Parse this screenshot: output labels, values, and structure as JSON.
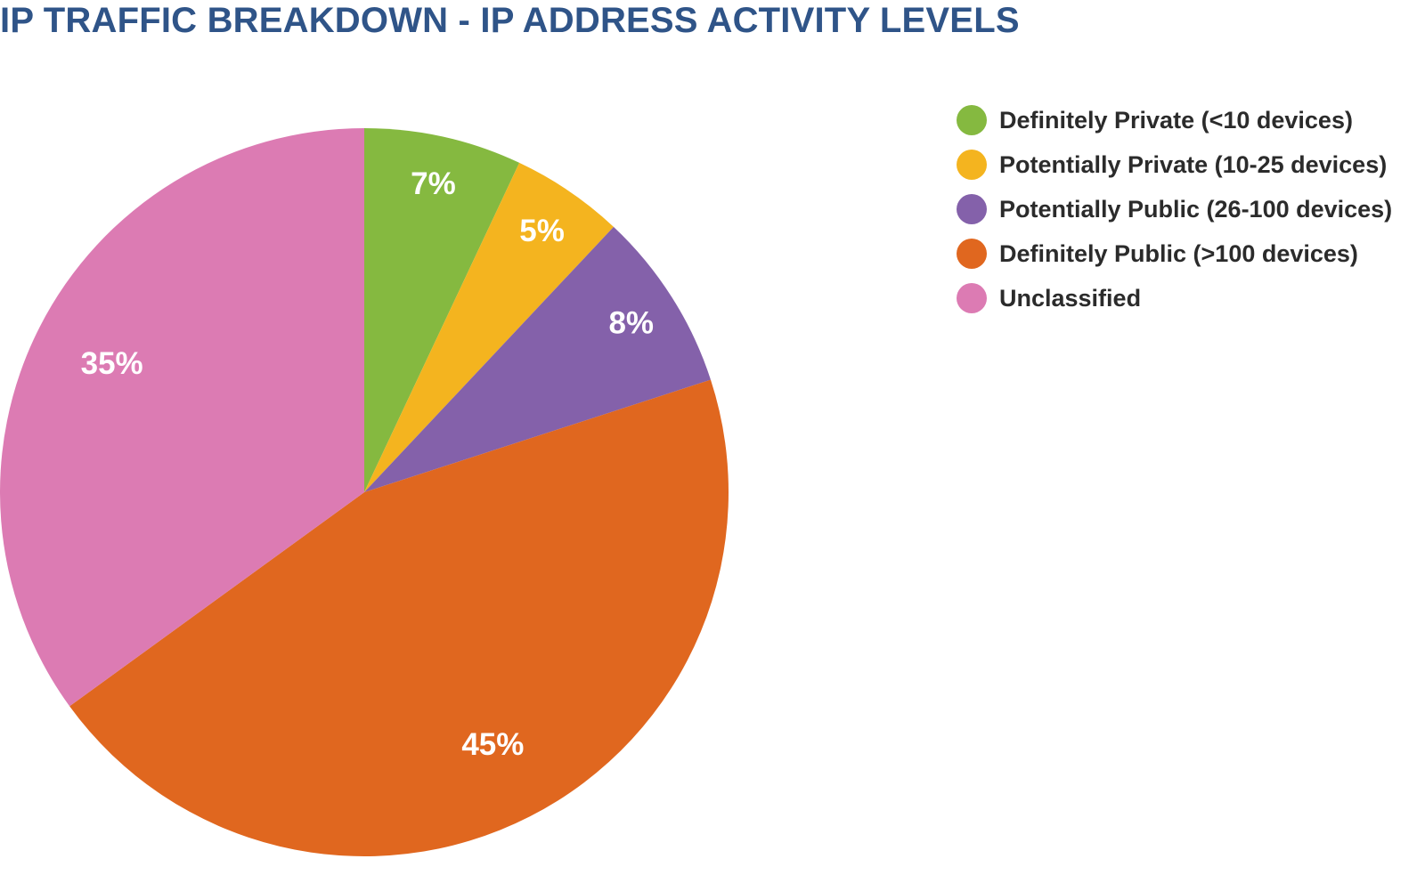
{
  "chart_data": {
    "type": "pie",
    "title": "IP TRAFFIC BREAKDOWN - IP ADDRESS ACTIVITY LEVELS",
    "legend_position": "right",
    "categories": [
      "Definitely Private (<10 devices)",
      "Potentially Private (10-25 devices)",
      "Potentially Public (26-100 devices)",
      "Definitely Public (>100 devices)",
      "Unclassified"
    ],
    "values": [
      7,
      5,
      8,
      45,
      35
    ],
    "data_labels": [
      "7%",
      "5%",
      "8%",
      "45%",
      "35%"
    ],
    "colors": [
      "#85b940",
      "#f4b41f",
      "#8461aa",
      "#e0671f",
      "#dc7bb3"
    ]
  }
}
